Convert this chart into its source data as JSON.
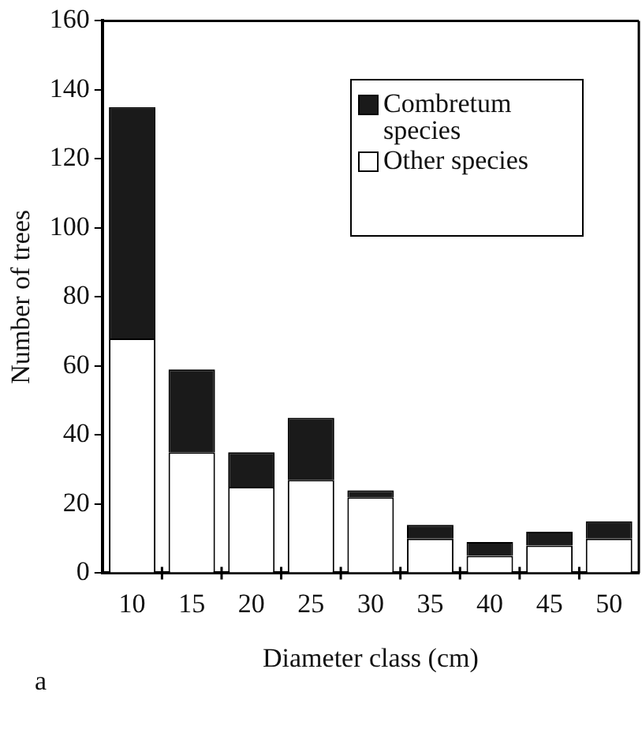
{
  "chart_data": {
    "type": "bar",
    "stacked": true,
    "xlabel": "Diameter class (cm)",
    "ylabel": "Number of trees",
    "categories": [
      "10",
      "15",
      "20",
      "25",
      "30",
      "35",
      "40",
      "45",
      "50"
    ],
    "series": [
      {
        "name": "Other species",
        "color": "#ffffff",
        "values": [
          68,
          35,
          25,
          27,
          22,
          10,
          5,
          8,
          10
        ]
      },
      {
        "name": "Combretum species",
        "color": "#1a1a1a",
        "values": [
          67,
          24,
          10,
          18,
          2,
          4,
          4,
          4,
          5
        ]
      }
    ],
    "ylim": [
      0,
      160
    ],
    "yticks": [
      0,
      20,
      40,
      60,
      80,
      100,
      120,
      140,
      160
    ],
    "grid": false,
    "legend": "top right",
    "annotations": [
      "a"
    ]
  }
}
